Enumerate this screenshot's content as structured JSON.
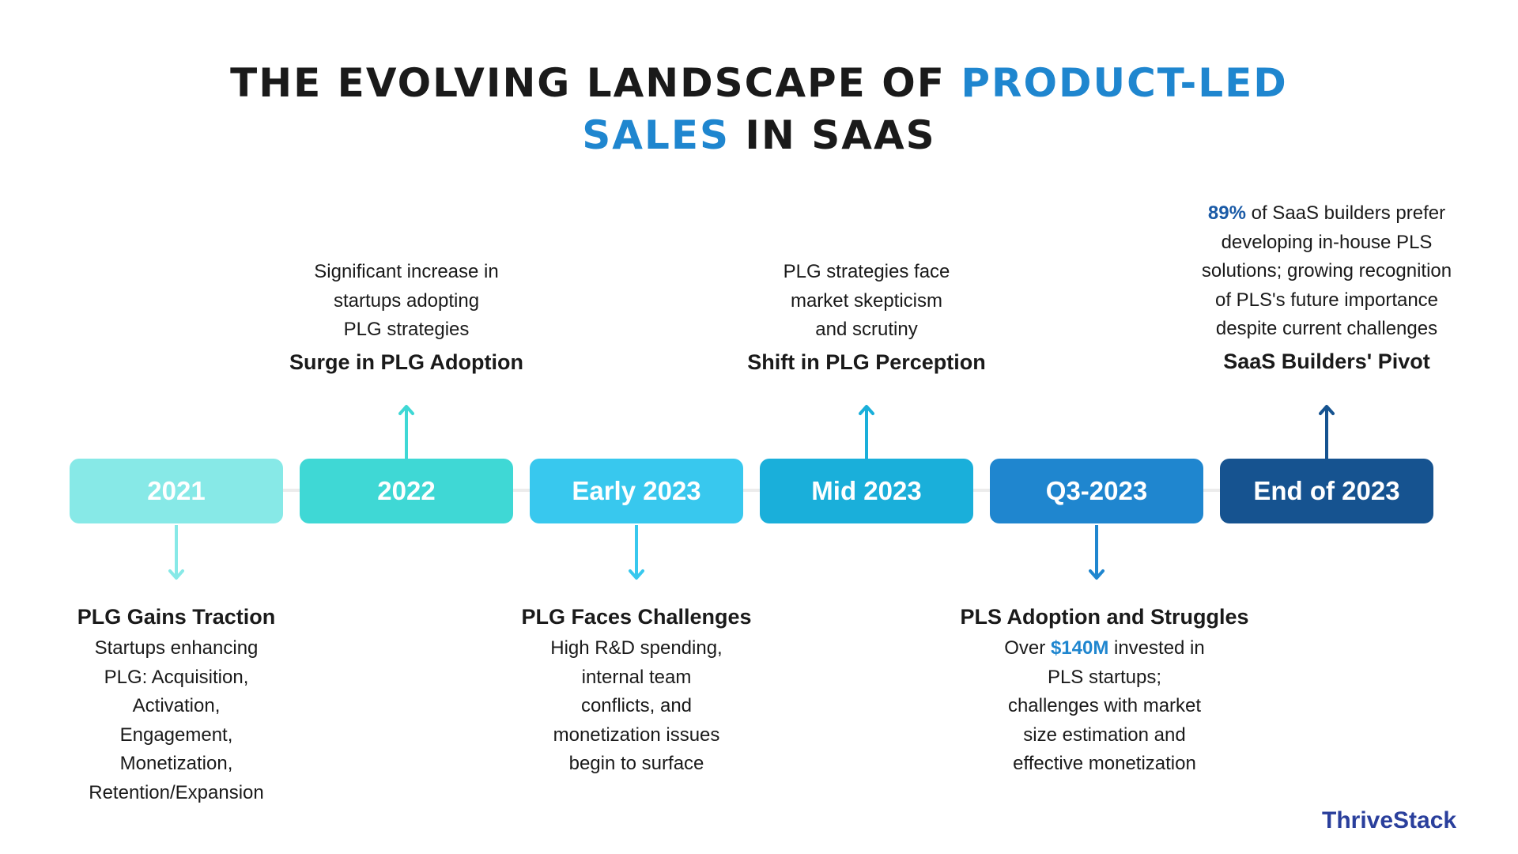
{
  "title": {
    "line1_a": "THE EVOLVING LANDSCAPE OF ",
    "line1_b": "PRODUCT-LED",
    "line2_a": "SALES",
    "line2_b": " IN SAAS"
  },
  "colors": {
    "accent": "#1f86cf",
    "stat_dark": "#1a5aa6",
    "brand": "#2a3f9c"
  },
  "timeline": [
    {
      "label": "2021",
      "color": "#87e9e7",
      "direction": "down"
    },
    {
      "label": "2022",
      "color": "#3fd8d5",
      "direction": "up"
    },
    {
      "label": "Early 2023",
      "color": "#38c8ee",
      "direction": "down"
    },
    {
      "label": "Mid 2023",
      "color": "#1aafda",
      "direction": "up"
    },
    {
      "label": "Q3-2023",
      "color": "#1f86cf",
      "direction": "down"
    },
    {
      "label": "End of 2023",
      "color": "#165390",
      "direction": "up"
    }
  ],
  "events": [
    {
      "title": "PLG Gains Traction",
      "lines": [
        "Startups enhancing",
        "PLG: Acquisition,",
        "Activation,",
        "Engagement,",
        "Monetization,",
        "Retention/Expansion"
      ]
    },
    {
      "title": "Surge in PLG Adoption",
      "lines": [
        "Significant increase in",
        "startups adopting",
        "PLG strategies"
      ]
    },
    {
      "title": "PLG Faces Challenges",
      "lines": [
        "High R&D spending,",
        "internal team",
        "conflicts, and",
        "monetization issues",
        "begin to surface"
      ]
    },
    {
      "title": "Shift in PLG Perception",
      "lines": [
        "PLG strategies face",
        "market skepticism",
        "and scrutiny"
      ]
    },
    {
      "title": "PLS Adoption and Struggles",
      "line1_pre": "Over ",
      "stat": "$140M",
      "line1_post": " invested in",
      "lines": [
        "PLS startups;",
        "challenges with market",
        "size estimation and",
        "effective monetization"
      ]
    },
    {
      "title": "SaaS Builders' Pivot",
      "stat": "89%",
      "line1_post": " of SaaS builders prefer",
      "lines": [
        "developing in-house PLS",
        "solutions; growing recognition",
        "of PLS's future importance",
        "despite current challenges"
      ]
    }
  ],
  "brand": "ThriveStack"
}
